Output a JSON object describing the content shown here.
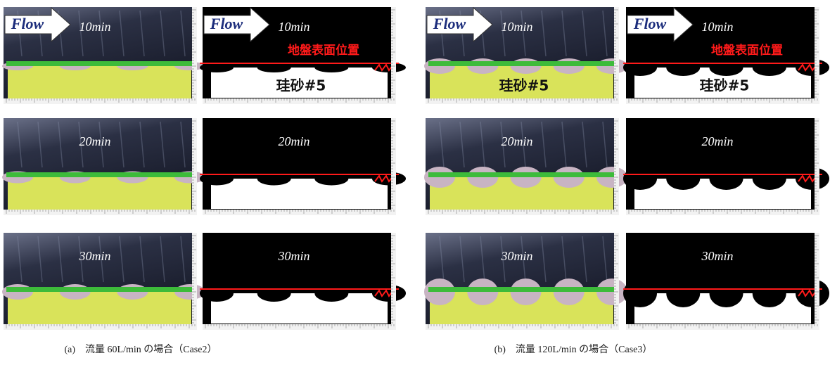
{
  "figures": [
    {
      "caption": "(a)　流量 60L/min の場合（Case2）",
      "rows": [
        {
          "photo": {
            "flow": "Flow",
            "time": "10min"
          },
          "binary": {
            "flow": "Flow",
            "time": "10min",
            "surface": "地盤表面位置",
            "material": "珪砂#5"
          }
        },
        {
          "photo": {
            "time": "20min"
          },
          "binary": {
            "time": "20min"
          }
        },
        {
          "photo": {
            "time": "30min"
          },
          "binary": {
            "time": "30min"
          }
        }
      ]
    },
    {
      "caption": "(b)　流量 120L/min の場合（Case3）",
      "rows": [
        {
          "photo": {
            "flow": "Flow",
            "time": "10min",
            "material": "珪砂#5"
          },
          "binary": {
            "flow": "Flow",
            "time": "10min",
            "surface": "地盤表面位置",
            "material": "珪砂#5"
          }
        },
        {
          "photo": {
            "time": "20min"
          },
          "binary": {
            "time": "20min"
          }
        },
        {
          "photo": {
            "time": "30min"
          },
          "binary": {
            "time": "30min"
          }
        }
      ]
    }
  ]
}
